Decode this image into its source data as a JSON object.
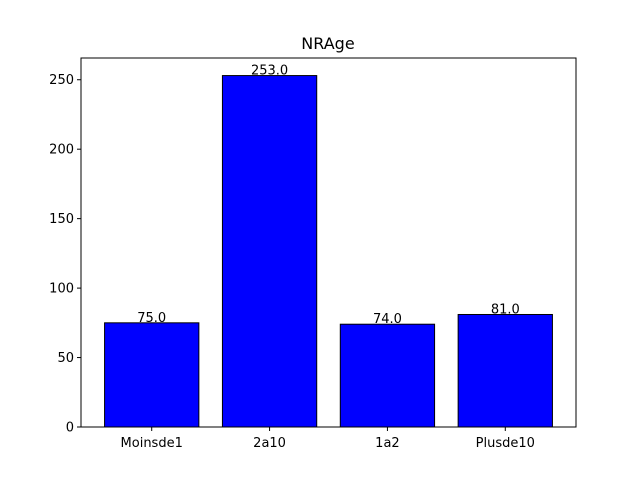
{
  "chart_data": {
    "type": "bar",
    "title": "NRAge",
    "xlabel": "",
    "ylabel": "",
    "categories": [
      "Moinsde1",
      "2a10",
      "1a2",
      "Plusde10"
    ],
    "values": [
      75.0,
      253.0,
      74.0,
      81.0
    ],
    "data_labels": [
      "75.0",
      "253.0",
      "74.0",
      "81.0"
    ],
    "ylim": [
      0,
      265.65
    ],
    "yticks": [
      0,
      50,
      100,
      150,
      200,
      250
    ],
    "ytick_labels": [
      "0",
      "50",
      "100",
      "150",
      "200",
      "250"
    ],
    "grid": false,
    "legend": "none",
    "bar_color": "#0000ff",
    "bar_edge_color": "#000000"
  }
}
